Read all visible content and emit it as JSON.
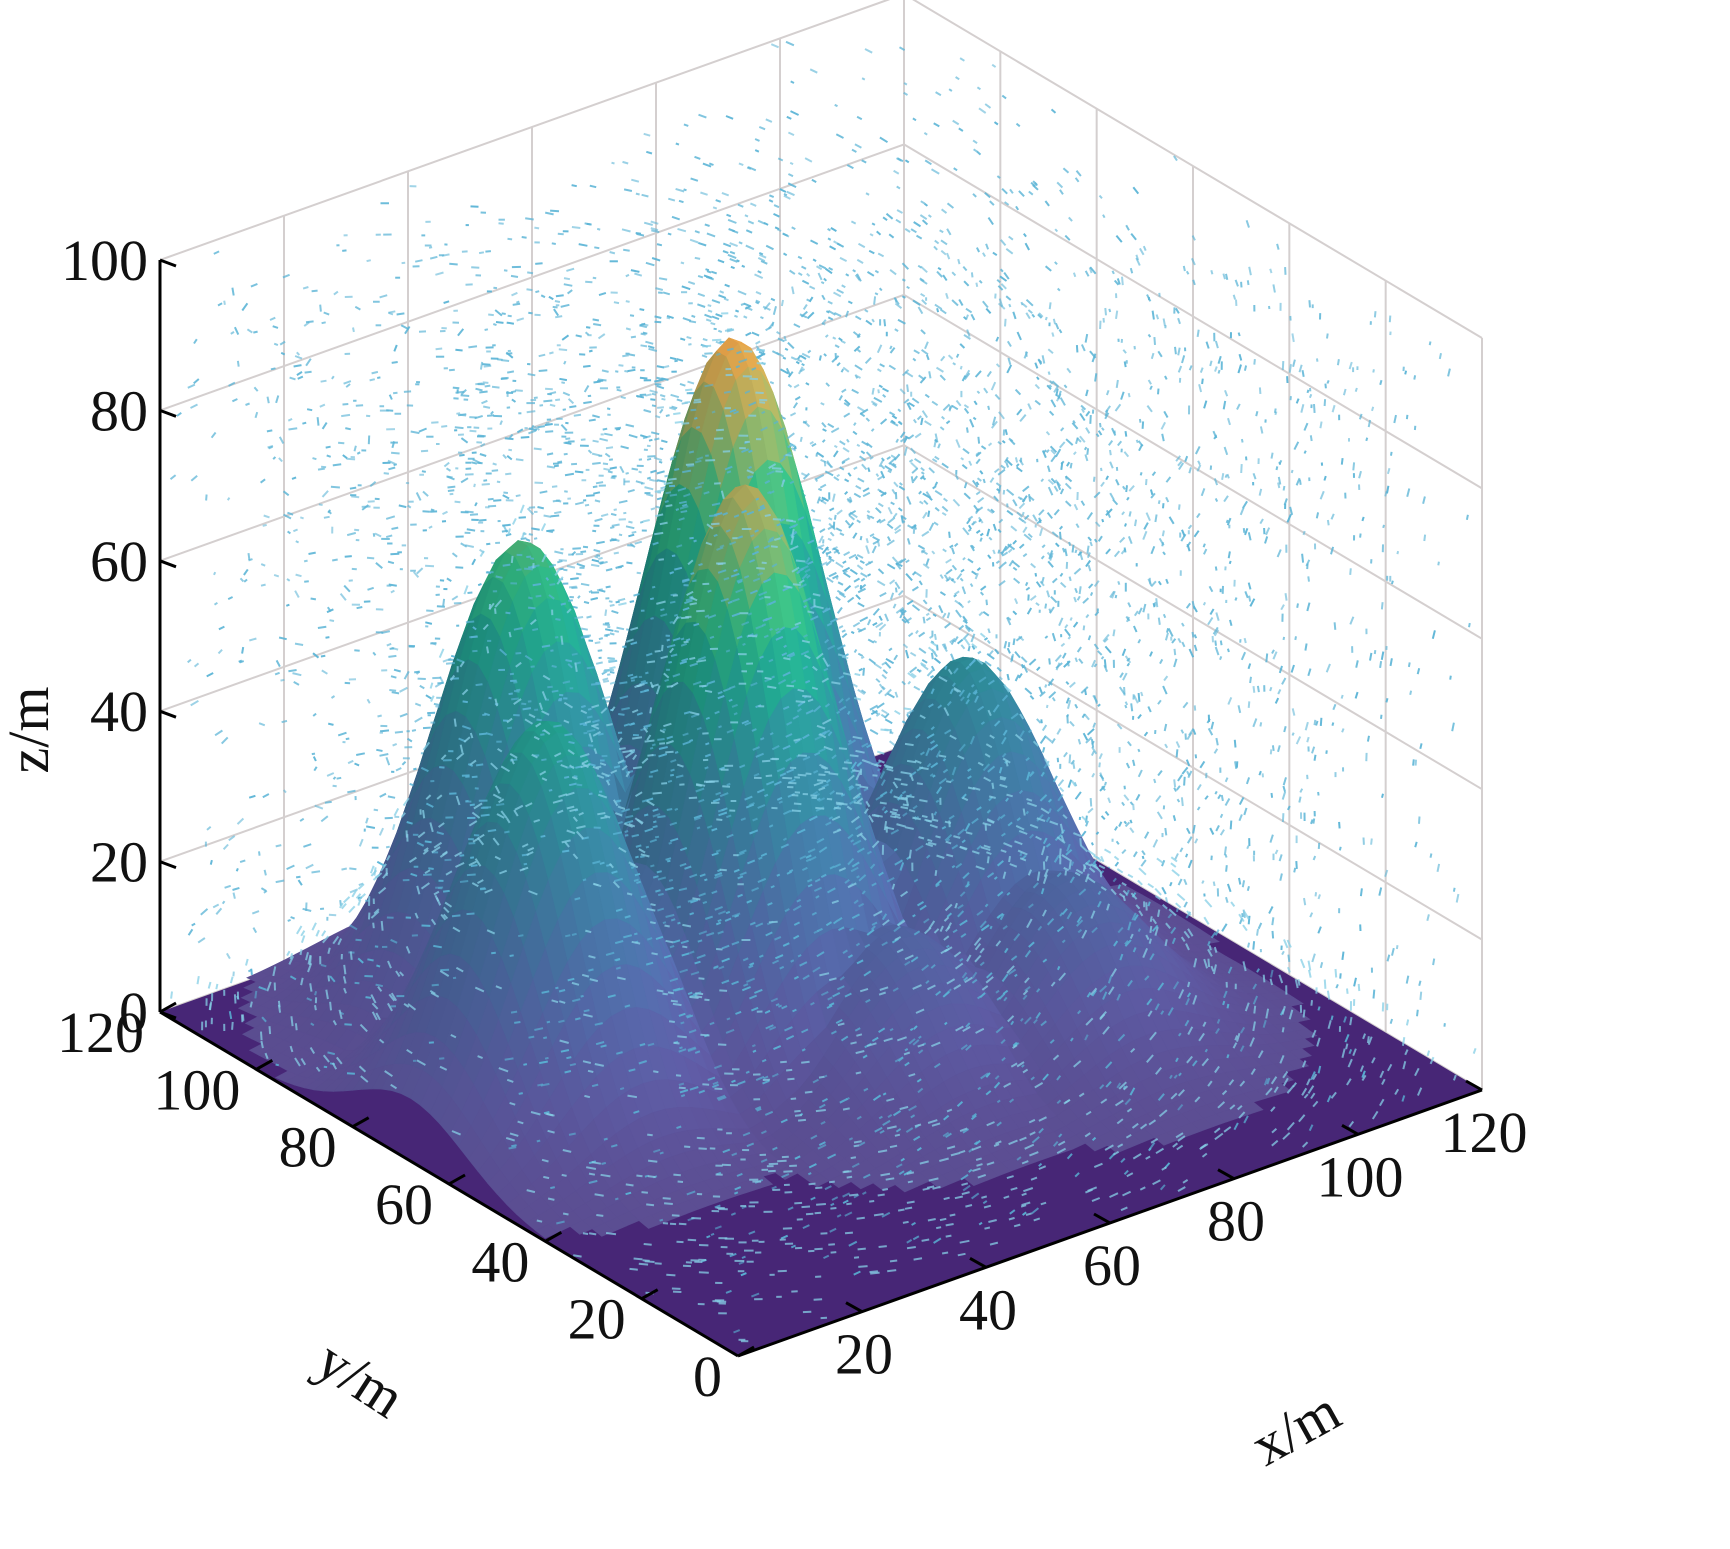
{
  "chart_data": {
    "type": "surface",
    "xlabel": "x/m",
    "ylabel": "y/m",
    "zlabel": "z/m",
    "xlim": [
      0,
      120
    ],
    "ylim": [
      0,
      120
    ],
    "zlim": [
      0,
      100
    ],
    "x_ticks": [
      "20",
      "40",
      "60",
      "80",
      "100",
      "120"
    ],
    "y_ticks": [
      "0",
      "20",
      "40",
      "60",
      "80",
      "100",
      "120"
    ],
    "z_ticks": [
      "0",
      "20",
      "40",
      "60",
      "80",
      "100"
    ],
    "grid": true,
    "colormap": "viridis",
    "peaks": [
      {
        "x": 22,
        "y": 68,
        "height": 52
      },
      {
        "x": 36,
        "y": 91,
        "height": 63
      },
      {
        "x": 54,
        "y": 68,
        "height": 74
      },
      {
        "x": 70,
        "y": 91,
        "height": 80
      },
      {
        "x": 85,
        "y": 62,
        "height": 44
      },
      {
        "x": 62,
        "y": 48,
        "height": 20
      },
      {
        "x": 86,
        "y": 43,
        "height": 22
      }
    ],
    "vector_field_color": "#5ab4d6"
  }
}
